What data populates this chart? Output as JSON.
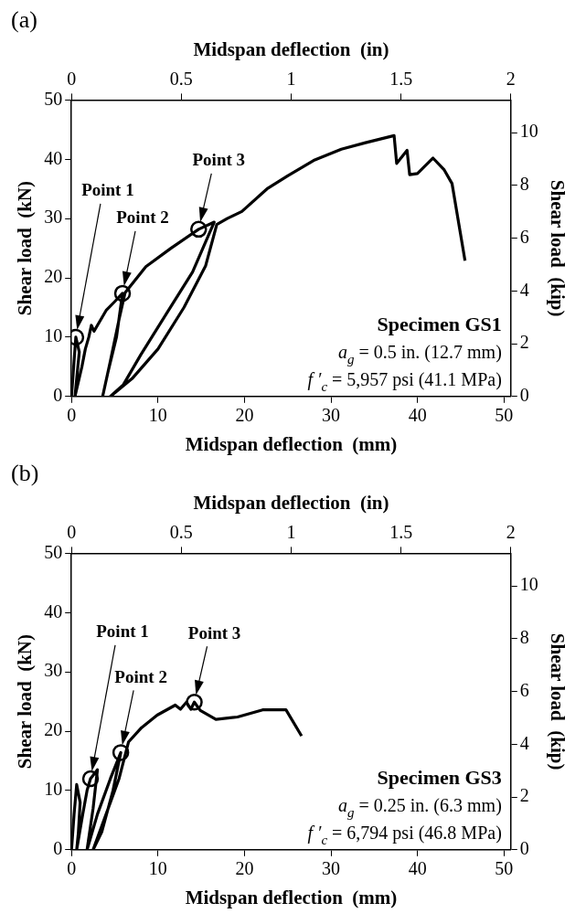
{
  "chart_data": [
    {
      "type": "line",
      "title": "(a)",
      "xlabel": "Midspan deflection  (mm)",
      "x2label": "Midspan deflection  (in)",
      "ylabel": "Shear load  (kN)",
      "y2label": "Shear load  (kip)",
      "xlim": [
        0,
        50.8
      ],
      "xticks": [
        0,
        10,
        20,
        30,
        40,
        50
      ],
      "x2lim": [
        0,
        2
      ],
      "x2ticks": [
        0,
        0.5,
        1,
        1.5,
        2
      ],
      "ylim": [
        0,
        50
      ],
      "yticks": [
        0,
        10,
        20,
        30,
        40,
        50
      ],
      "y2lim": [
        0,
        11.24
      ],
      "y2ticks": [
        0,
        2,
        4,
        6,
        8,
        10
      ],
      "grid": false,
      "legend": false,
      "series": [
        {
          "type": "line",
          "color": "#000000",
          "marker": "none",
          "line_style": "solid",
          "x": [
            0,
            0.3,
            0.5,
            0.9,
            0.6,
            0.4,
            1.2,
            1.6,
            2,
            2.3,
            2.6,
            3,
            4,
            5,
            5.9,
            5.2,
            4.2,
            3.6,
            4.5,
            5.5,
            6.2,
            8.6,
            11.5,
            14.7,
            16.5,
            14,
            11,
            8,
            6,
            4.5,
            7,
            10,
            13,
            15.5,
            16.8,
            18,
            19.7,
            22.6,
            25,
            28,
            31.2,
            34,
            37.3,
            37.6,
            38.8,
            39.1,
            40,
            41.8,
            43.1,
            44,
            45.5
          ],
          "values": [
            0,
            6,
            10,
            7.5,
            3,
            0,
            5,
            8,
            10,
            12,
            11,
            12,
            14.5,
            16,
            17.4,
            10,
            4,
            0,
            6,
            13,
            17.5,
            21.9,
            25,
            28.2,
            29.4,
            21,
            14,
            7,
            2,
            0,
            3,
            8,
            15,
            22,
            29,
            30,
            31.2,
            35,
            37.2,
            39.8,
            41.7,
            42.8,
            44,
            39.3,
            41.5,
            37.4,
            37.6,
            40.2,
            38.2,
            35.9,
            22.9
          ]
        },
        {
          "type": "scatter",
          "color": "#000000",
          "marker": "circle",
          "x": [
            0.5,
            5.9,
            14.7
          ],
          "values": [
            10,
            17.4,
            28.2
          ]
        }
      ],
      "annotations": [
        "Point 1",
        "Point 2",
        "Point 3",
        "Specimen GS1",
        "a$_{g}$ = 0.5 in. (12.7 mm)",
        "f ′$_{c}$ = 5,957 psi (41.1 MPa)"
      ]
    },
    {
      "type": "line",
      "title": "(b)",
      "xlabel": "Midspan deflection  (mm)",
      "x2label": "Midspan deflection  (in)",
      "ylabel": "Shear load  (kN)",
      "y2label": "Shear load  (kip)",
      "xlim": [
        0,
        50.8
      ],
      "xticks": [
        0,
        10,
        20,
        30,
        40,
        50
      ],
      "x2lim": [
        0,
        2
      ],
      "x2ticks": [
        0,
        0.5,
        1,
        1.5,
        2
      ],
      "ylim": [
        0,
        50
      ],
      "yticks": [
        0,
        10,
        20,
        30,
        40,
        50
      ],
      "y2lim": [
        0,
        11.24
      ],
      "y2ticks": [
        0,
        2,
        4,
        6,
        8,
        10
      ],
      "grid": false,
      "legend": false,
      "series": [
        {
          "type": "line",
          "color": "#000000",
          "marker": "none",
          "line_style": "solid",
          "x": [
            0,
            0.3,
            0.6,
            1,
            0.8,
            0.6,
            1.3,
            1.8,
            2.2,
            3,
            2.5,
            1.8,
            3,
            4.5,
            5.7,
            4.8,
            3.5,
            2.5,
            4,
            5.5,
            6.6,
            8.1,
            9.9,
            12,
            12.6,
            13.3,
            13.8,
            14.2,
            14.9,
            16.7,
            19.2,
            22.1,
            24.8,
            26.6
          ],
          "values": [
            0,
            6,
            11,
            8,
            3,
            0,
            6,
            10,
            12,
            13.5,
            7,
            0,
            6,
            12,
            16.4,
            10,
            3,
            0,
            6,
            12,
            18.2,
            20.6,
            22.7,
            24.4,
            23.7,
            24.9,
            23.7,
            24.9,
            23.5,
            22,
            22.4,
            23.6,
            23.6,
            19.2
          ]
        },
        {
          "type": "scatter",
          "color": "#000000",
          "marker": "circle",
          "x": [
            2.2,
            5.7,
            14.2
          ],
          "values": [
            12,
            16.4,
            24.9
          ]
        }
      ],
      "annotations": [
        "Point 1",
        "Point 2",
        "Point 3",
        "Specimen GS3",
        "a$_{g}$ = 0.25 in. (6.3 mm)",
        "f ′$_{c}$ = 6,794 psi (46.8 MPa)"
      ]
    }
  ]
}
